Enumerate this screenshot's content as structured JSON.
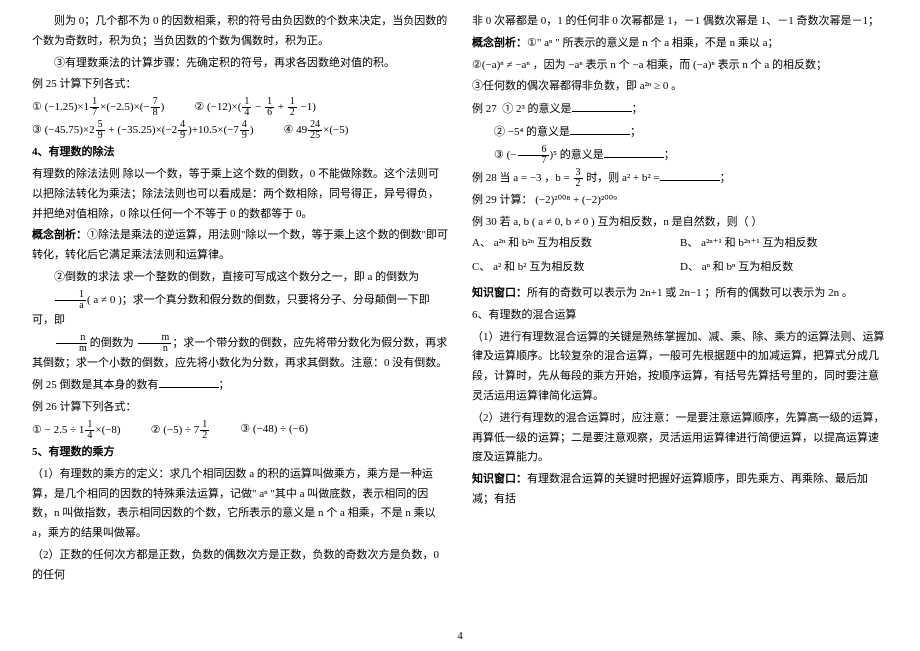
{
  "left": {
    "rule_zero": "则为 0；几个都不为 0 的因数相乘，积的符号由负因数的个数来决定，当负因数的个数为奇数时，积为负；当负因数的个数为偶数时，积为正。",
    "rule_step": "③有理数乘法的计算步骤：先确定积的符号，再求各因数绝对值的积。",
    "ex25_title": "例 25  计算下列各式：",
    "div_heading": "4、有理数的除法",
    "div_rule": "有理数的除法法则  除以一个数，等于乘上这个数的倒数，0 不能做除数。这个法则可以把除法转化为乘法；除法法则也可以看成是：两个数相除，同号得正，异号得负，并把绝对值相除，0 除以任何一个不等于 0 的数都等于 0。",
    "div_analysis_head": "概念剖析：",
    "div_analysis_1": "①除法是乘法的逆运算，用法则\"除以一个数，等于乘上这个数的倒数\"即可转化，转化后它满足乘法法则和运算律。",
    "div_analysis_2": "②倒数的求法  求一个整数的倒数，直接可写成这个数分之一，即 a 的倒数为",
    "div_analysis_2b": "；求一个真分数和假分数的倒数，只要将分子、分母颠倒一下即可，即",
    "div_analysis_2c": "的倒数为",
    "div_analysis_2d": "；求一个带分数的倒数，应先将带分数化为假分数，再求其倒数；求一个小数的倒数，应先将小数化为分数，再求其倒数。注意：0 没有倒数。",
    "ex25b": "例 25    倒数是其本身的数有",
    "ex26_title": "例 26    计算下列各式：",
    "pow_heading": "5、有理数的乘方",
    "pow_def": "（1）有理数的乘方的定义：求几个相同因数 a 的积的运算叫做乘方，乘方是一种运算，是几个相同的因数的特殊乘法运算，记做\" aⁿ \"其中 a 叫做底数，表示相同的因数，n 叫做指数，表示相同因数的个数，它所表示的意义是 n 个 a 相乘，不是 n 乘以 a，乘方的结果叫做幂。",
    "pow_sign": "（2）正数的任何次方都是正数，负数的偶数次方是正数，负数的奇数次方是负数，0 的任何"
  },
  "right": {
    "pow_cont": "非 0 次幂都是 0，1 的任何非 0 次幂都是 1，－1 偶数次幂是 1、－1 奇数次幂是－1；",
    "analysis_head": "概念剖析：",
    "analysis_1a": "①\" aⁿ \"  所表示的意义是 n 个 a 相乘，不是 n 乘以 a；",
    "analysis_2": "②(−a)ⁿ ≠ −aⁿ ，因为 −aⁿ 表示 n 个 −a 相乘，而 (−a)ⁿ 表示 n 个 a 的相反数；",
    "analysis_3": "③任何数的偶次幂都得非负数，即 a²ⁿ ≥ 0 。",
    "ex27": "例 27",
    "ex27_1": "① 2³ 的意义是",
    "ex27_2": "② −5⁴ 的意义是",
    "ex27_3pre": "③",
    "ex27_3post": "的意义是",
    "ex28": "例 28   当 a = −3 ，b =",
    "ex28_mid": "时，则 a² + b² =",
    "ex29": "例 29   计算：  (−2)²⁰⁰⁸ + (−2)²⁰⁰⁹",
    "ex30": "例 30   若 a, b ( a ≠ 0, b ≠ 0 ) 互为相反数，n 是自然数，则（        ）",
    "opt_a": "A、 a²ⁿ 和 b²ⁿ 互为相反数",
    "opt_b": "B、 a²ⁿ⁺¹ 和 b²ⁿ⁺¹ 互为相反数",
    "opt_c": "C、 a² 和 b² 互为相反数",
    "opt_d": "D、 aⁿ 和 bⁿ 互为相反数",
    "window_head": "知识窗口：",
    "window_body": "所有的奇数可以表示为 2n+1 或 2n−1 ；所有的偶数可以表示为 2n 。",
    "mix_heading": "6、有理数的混合运算",
    "mix_1": "（1）进行有理数混合运算的关键是熟练掌握加、减、乘、除、乘方的运算法则、运算律及运算顺序。比较复杂的混合运算，一般可先根据题中的加减运算，把算式分成几段，计算时，先从每段的乘方开始，按顺序运算，有括号先算括号里的，同时要注意灵活运用运算律简化运算。",
    "mix_2": "（2）进行有理数的混合运算时，应注意：一是要注意运算顺序，先算高一级的运算，再算低一级的运算；二是要注意观察，灵活运用运算律进行简便运算，以提高运算速度及运算能力。",
    "window2_head": "知识窗口：",
    "window2_body": "有理数混合运算的关键时把握好运算顺序，即先乘方、再乘除、最后加减；有括"
  },
  "pagenum": "4"
}
